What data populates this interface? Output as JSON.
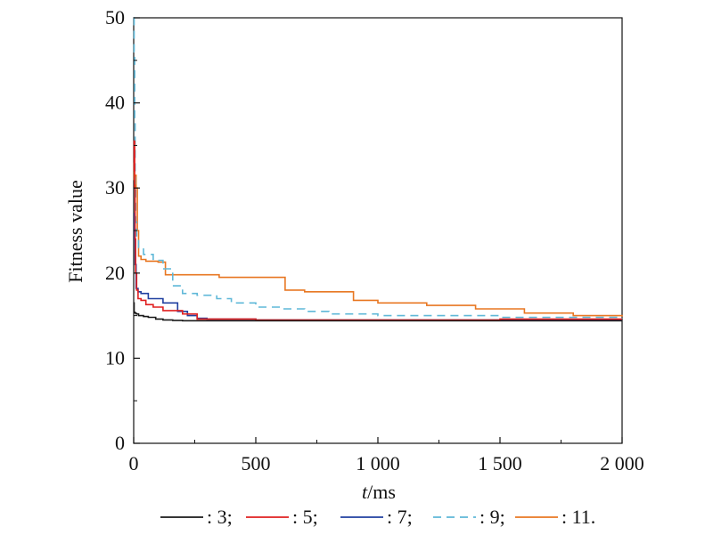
{
  "chart_data": {
    "type": "line",
    "title": "",
    "xlabel_italic": "t",
    "xlabel_rest": "/ms",
    "ylabel": "Fitness value",
    "xlim": [
      0,
      2000
    ],
    "ylim": [
      0,
      50
    ],
    "xticks": [
      0,
      500,
      1000,
      1500,
      2000
    ],
    "xtick_labels": [
      "0",
      "500",
      "1 000",
      "1 500",
      "2 000"
    ],
    "yticks": [
      0,
      10,
      20,
      30,
      40,
      50
    ],
    "ytick_labels": [
      "0",
      "10",
      "20",
      "30",
      "40",
      "50"
    ],
    "grid": false,
    "legend_position": "bottom",
    "series": [
      {
        "legend_label": ": 3;",
        "color": "#1a1a1a",
        "dash": "solid",
        "x": [
          0,
          2,
          5,
          10,
          20,
          40,
          60,
          90,
          120,
          160,
          200,
          300,
          500,
          1000,
          1500,
          2000
        ],
        "y": [
          16.5,
          15.4,
          15.3,
          15.2,
          15.0,
          14.9,
          14.8,
          14.6,
          14.5,
          14.45,
          14.4,
          14.4,
          14.4,
          14.4,
          14.4,
          14.4
        ]
      },
      {
        "legend_label": ": 5;",
        "color": "#e02020",
        "dash": "solid",
        "x": [
          0,
          2,
          4,
          6,
          8,
          12,
          18,
          30,
          50,
          80,
          120,
          200,
          260,
          500,
          1000,
          1500,
          2000
        ],
        "y": [
          32,
          35.5,
          30,
          24,
          20,
          18,
          17,
          16.8,
          16.3,
          16.0,
          15.6,
          15.2,
          14.6,
          14.5,
          14.5,
          14.6,
          14.6
        ]
      },
      {
        "legend_label": ": 7;",
        "color": "#2040a0",
        "dash": "solid",
        "x": [
          0,
          3,
          6,
          10,
          18,
          30,
          60,
          120,
          180,
          220,
          260,
          300,
          500,
          1000,
          1500,
          2000
        ],
        "y": [
          27,
          24,
          21,
          18.2,
          17.8,
          17.6,
          17.0,
          16.5,
          15.5,
          15.0,
          14.7,
          14.6,
          14.5,
          14.5,
          14.5,
          14.5
        ]
      },
      {
        "legend_label": ": 9;",
        "color": "#5fb8d8",
        "dash": "dashed",
        "x": [
          0,
          2,
          4,
          6,
          8,
          12,
          20,
          40,
          80,
          120,
          160,
          200,
          260,
          340,
          400,
          500,
          600,
          700,
          800,
          1000,
          1500,
          2000
        ],
        "y": [
          50,
          46,
          38,
          30,
          26,
          24,
          23,
          22.2,
          21.5,
          20.5,
          18.5,
          17.6,
          17.4,
          17.0,
          16.5,
          16.0,
          15.8,
          15.5,
          15.2,
          15.0,
          14.8,
          14.7
        ]
      },
      {
        "legend_label": ": 11.",
        "color": "#e87722",
        "dash": "solid",
        "x": [
          0,
          2,
          4,
          6,
          10,
          15,
          20,
          30,
          50,
          100,
          130,
          200,
          350,
          500,
          620,
          700,
          900,
          1000,
          1200,
          1400,
          1600,
          1800,
          2000
        ],
        "y": [
          33,
          31,
          30,
          31.5,
          30,
          25,
          22,
          21.6,
          21.4,
          21.3,
          19.8,
          19.8,
          19.5,
          19.5,
          18.0,
          17.8,
          16.8,
          16.5,
          16.2,
          15.8,
          15.3,
          15.0,
          14.9
        ]
      }
    ]
  }
}
